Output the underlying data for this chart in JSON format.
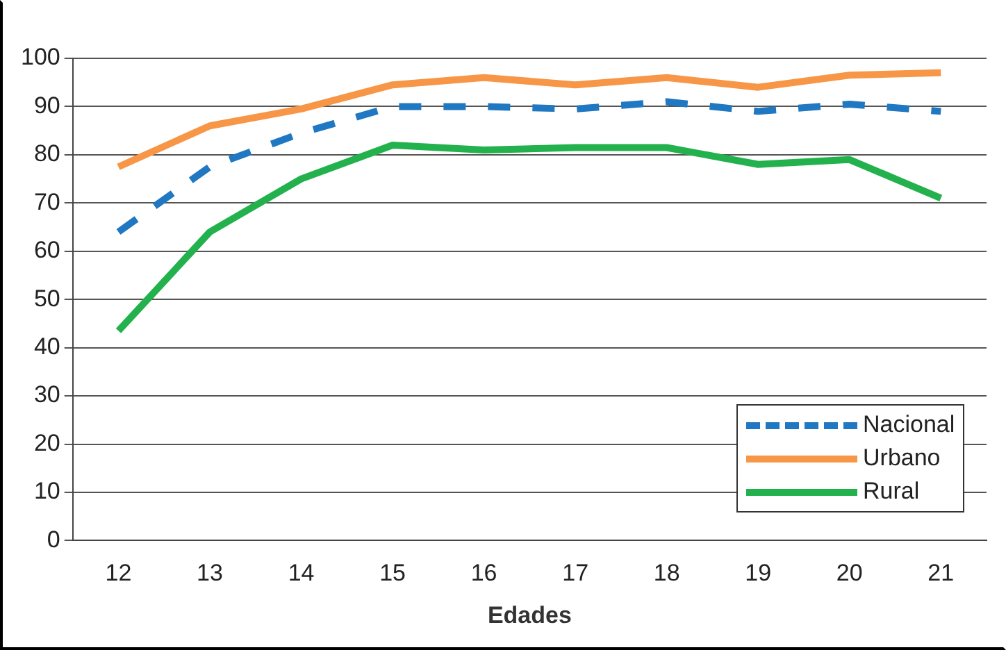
{
  "chart_data": {
    "type": "line",
    "xlabel": "Edades",
    "categories": [
      "12",
      "13",
      "14",
      "15",
      "16",
      "17",
      "18",
      "19",
      "20",
      "21"
    ],
    "series": [
      {
        "name": "Nacional",
        "color": "#1f78c1",
        "line_style": "dashed",
        "values": [
          64,
          77.5,
          84.5,
          90,
          90,
          89.5,
          91,
          89,
          90.5,
          89
        ]
      },
      {
        "name": "Urbano",
        "color": "#f79646",
        "line_style": "solid",
        "values": [
          77.5,
          86,
          89.5,
          94.5,
          96,
          94.5,
          96,
          94,
          96.5,
          97
        ]
      },
      {
        "name": "Rural",
        "color": "#22b14c",
        "line_style": "solid",
        "values": [
          43.5,
          64,
          75,
          82,
          81,
          81.5,
          81.5,
          78,
          79,
          71
        ]
      }
    ],
    "ylim": [
      0,
      100
    ],
    "yticks": [
      0,
      10,
      20,
      30,
      40,
      50,
      60,
      70,
      80,
      90,
      100
    ],
    "grid": "y",
    "legend": "bottom right",
    "marker": "none"
  }
}
